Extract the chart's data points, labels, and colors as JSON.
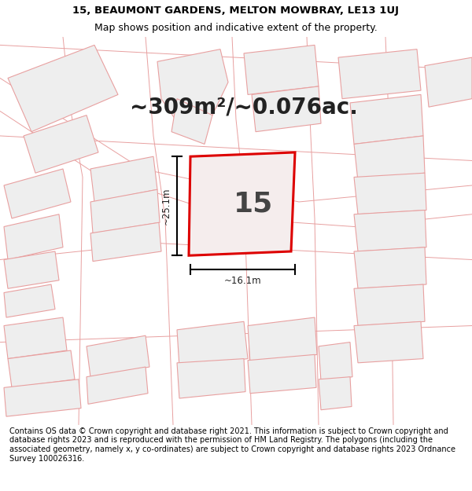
{
  "title_line1": "15, BEAUMONT GARDENS, MELTON MOWBRAY, LE13 1UJ",
  "title_line2": "Map shows position and indicative extent of the property.",
  "area_text": "~309m²/~0.076ac.",
  "property_number": "15",
  "dimension_width": "~16.1m",
  "dimension_height": "~25.1m",
  "footer_text": "Contains OS data © Crown copyright and database right 2021. This information is subject to Crown copyright and database rights 2023 and is reproduced with the permission of HM Land Registry. The polygons (including the associated geometry, namely x, y co-ordinates) are subject to Crown copyright and database rights 2023 Ordnance Survey 100026316.",
  "bg_color": "#ffffff",
  "map_bg_color": "#ffffff",
  "property_fill": "#f5eded",
  "property_edge_color": "#dd0000",
  "neighbor_edge_color": "#e8a0a0",
  "neighbor_fill": "#eeeeee",
  "title_fontsize": 9.5,
  "area_fontsize": 20,
  "number_fontsize": 26,
  "footer_fontsize": 7.0,
  "neighbor_lw": 0.8
}
